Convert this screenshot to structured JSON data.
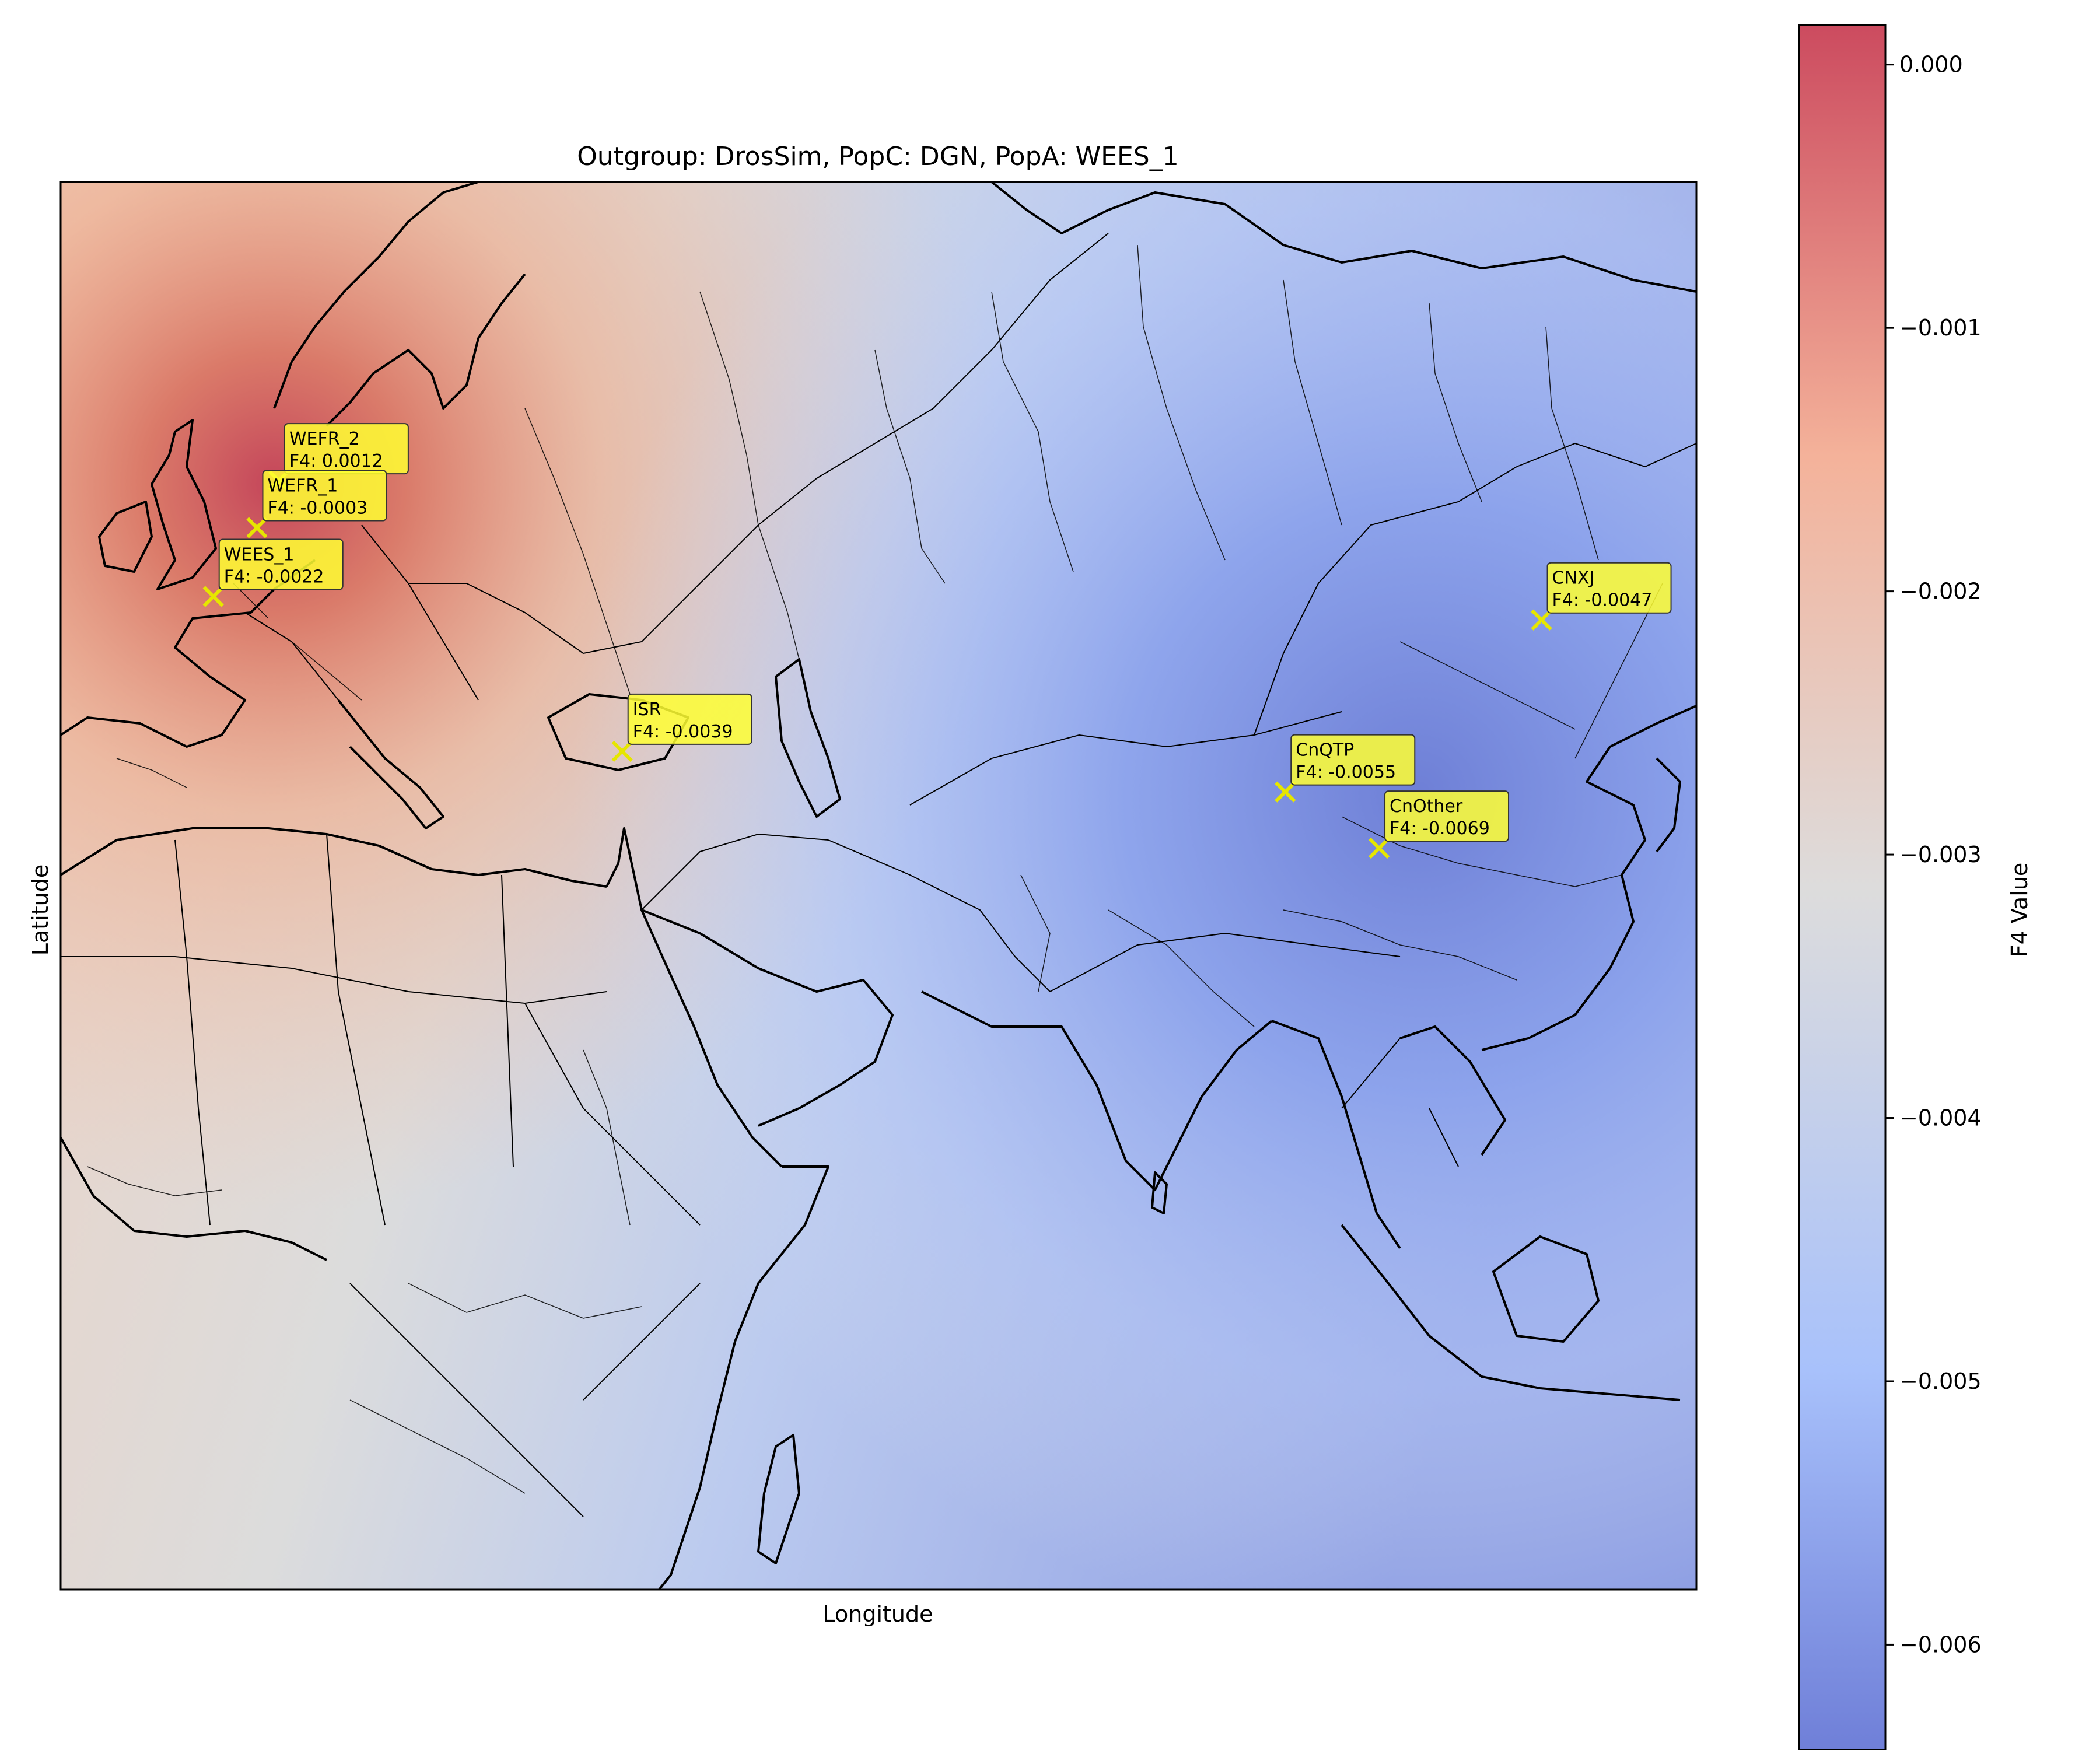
{
  "title": "Outgroup: DrosSim, PopC: DGN, PopA: WEES_1",
  "xlabel": "Longitude",
  "ylabel": "Latitude",
  "colorbar": {
    "label": "F4 Value",
    "range": [
      -0.0064,
      0.00015
    ],
    "ticks": [
      {
        "value": 0.0,
        "label": "0.000"
      },
      {
        "value": -0.001,
        "label": "−0.001"
      },
      {
        "value": -0.002,
        "label": "−0.002"
      },
      {
        "value": -0.003,
        "label": "−0.003"
      },
      {
        "value": -0.004,
        "label": "−0.004"
      },
      {
        "value": -0.005,
        "label": "−0.005"
      },
      {
        "value": -0.006,
        "label": "−0.006"
      }
    ],
    "colormap": "coolwarm",
    "colors": [
      "#6f7fd8",
      "#a8c1fb",
      "#dddcdc",
      "#f4b29a",
      "#cc4b5f"
    ]
  },
  "chart_data": {
    "type": "heatmap",
    "map_extent": {
      "lon": [
        -12,
        138
      ],
      "lat": [
        -22,
        68
      ]
    },
    "gridlines": false,
    "marker": "x",
    "marker_color": "#e6e600",
    "label_box_color": "#ffff33",
    "populations": [
      {
        "name": "WEFR_2",
        "label": "WEFR_2",
        "f4_text": "F4: 0.0012",
        "f4": 0.0012,
        "lon": 8.0,
        "lat": 48.9
      },
      {
        "name": "WEFR_1",
        "label": "WEFR_1",
        "f4_text": "F4: -0.0003",
        "f4": -0.0003,
        "lon": 6.0,
        "lat": 45.9
      },
      {
        "name": "WEES",
        "label": "WEES_1",
        "f4_text": "F4: -0.0022",
        "f4": -0.0022,
        "lon": 2.0,
        "lat": 41.5
      },
      {
        "name": "ISR",
        "label": "ISR",
        "f4_text": "F4: -0.0039",
        "f4": -0.0039,
        "lon": 39.5,
        "lat": 31.6
      },
      {
        "name": "CnQTP",
        "label": "CnQTP",
        "f4_text": "F4: -0.0055",
        "f4": -0.0055,
        "lon": 100.3,
        "lat": 29.0
      },
      {
        "name": "CnOther",
        "label": "CnOther",
        "f4_text": "F4: -0.0069",
        "f4": -0.0069,
        "lon": 108.9,
        "lat": 25.4
      },
      {
        "name": "CNXJ",
        "label": "CNXJ",
        "f4_text": "F4: -0.0047",
        "f4": -0.0047,
        "lon": 123.8,
        "lat": 40.0
      }
    ]
  }
}
